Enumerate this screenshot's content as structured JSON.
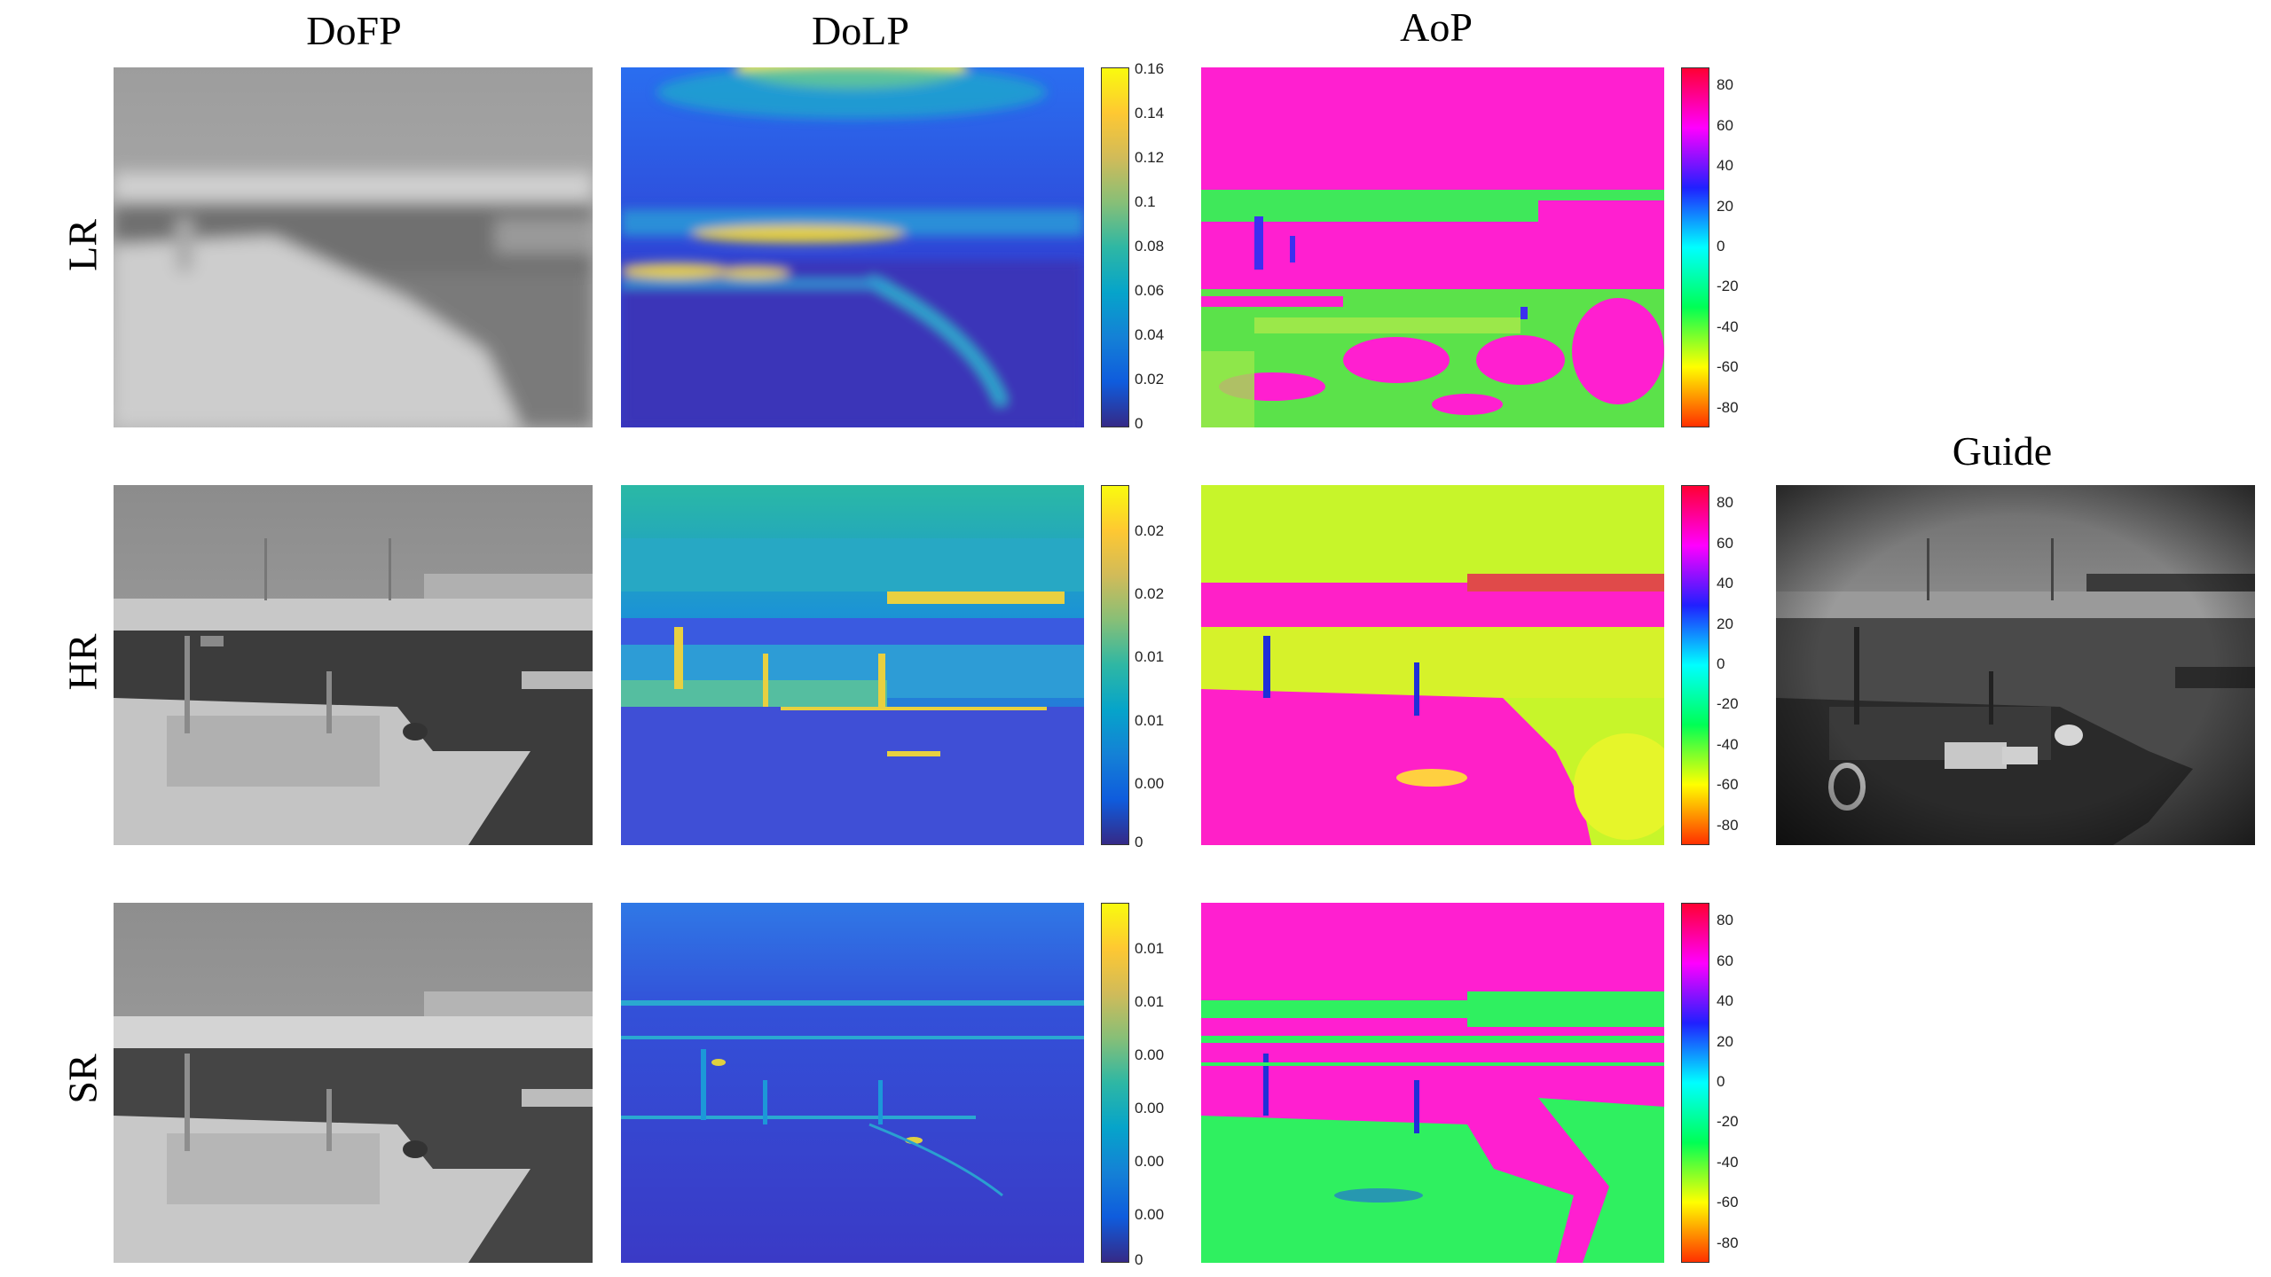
{
  "columns": {
    "dofp": "DoFP",
    "dolp": "DoLP",
    "aop": "AoP",
    "guide": "Guide"
  },
  "rows": {
    "lr": "LR",
    "hr": "HR",
    "sr": "SR"
  },
  "colorbars": {
    "dolp_lr": [
      "0.16",
      "0.14",
      "0.12",
      "0.1",
      "0.08",
      "0.06",
      "0.04",
      "0.02",
      "0"
    ],
    "dolp_hr": [
      "0.02",
      "0.02",
      "0.01",
      "0.01",
      "0.00",
      "0"
    ],
    "dolp_sr": [
      "0.01",
      "0.01",
      "0.00",
      "0.00",
      "0.00",
      "0.00",
      "0"
    ],
    "aop": [
      "80",
      "60",
      "40",
      "20",
      "0",
      "-20",
      "-40",
      "-60",
      "-80"
    ]
  },
  "colormaps": {
    "parula": [
      "#352a87",
      "#0f5cdd",
      "#1481d6",
      "#06a4ca",
      "#2eb7a4",
      "#87bf77",
      "#d1bb59",
      "#fec832",
      "#f9fb0e"
    ],
    "hsv": [
      "#ff0000",
      "#ff00ff",
      "#0000ff",
      "#00ffff",
      "#00ff00",
      "#ffff00",
      "#ff0000"
    ]
  }
}
